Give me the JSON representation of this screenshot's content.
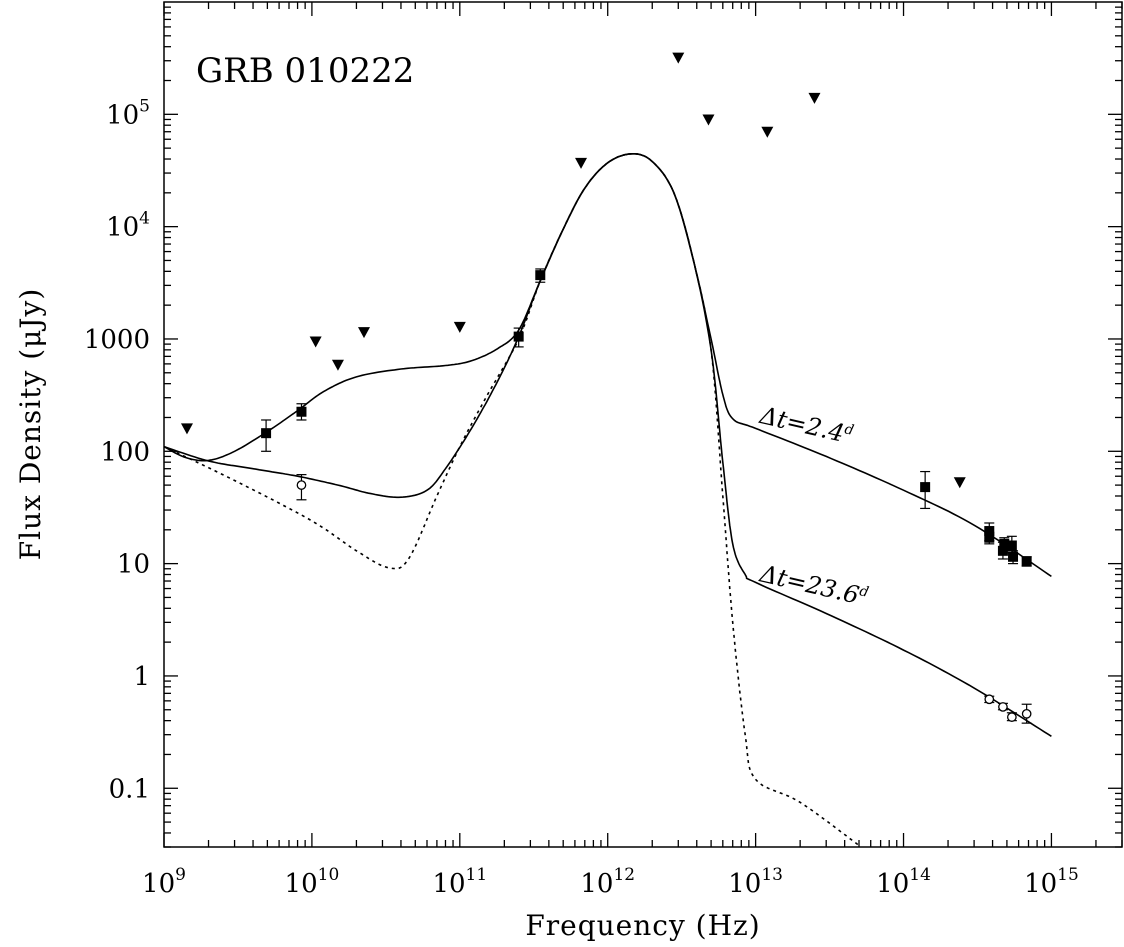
{
  "chart_data": {
    "type": "scatter",
    "title": "GRB 010222",
    "xlabel": "Frequency (Hz)",
    "ylabel": "Flux Density (μJy)",
    "xscale": "log",
    "yscale": "log",
    "xlim": [
      1000000000.0,
      3000000000000000.0
    ],
    "ylim": [
      0.03,
      1000000.0
    ],
    "grid": false,
    "x_ticks": [
      {
        "value": 1000000000.0,
        "base": "10",
        "exp": "9"
      },
      {
        "value": 10000000000.0,
        "base": "10",
        "exp": "10"
      },
      {
        "value": 100000000000.0,
        "base": "10",
        "exp": "11"
      },
      {
        "value": 1000000000000.0,
        "base": "10",
        "exp": "12"
      },
      {
        "value": 10000000000000.0,
        "base": "10",
        "exp": "13"
      },
      {
        "value": 100000000000000.0,
        "base": "10",
        "exp": "14"
      },
      {
        "value": 1000000000000000.0,
        "base": "10",
        "exp": "15"
      }
    ],
    "y_ticks": [
      {
        "value": 0.1,
        "label": "0.1"
      },
      {
        "value": 1,
        "label": "1"
      },
      {
        "value": 10,
        "label": "10"
      },
      {
        "value": 100,
        "label": "100"
      },
      {
        "value": 1000,
        "label": "1000"
      },
      {
        "value": 10000,
        "base": "10",
        "exp": "4"
      },
      {
        "value": 100000,
        "base": "10",
        "exp": "5"
      }
    ],
    "series": [
      {
        "marker": "filled-square",
        "points": [
          {
            "x": 4900000000.0,
            "y": 145,
            "yerr": [
              100,
              190
            ]
          },
          {
            "x": 8500000000.0,
            "y": 225,
            "yerr": [
              190,
              265
            ]
          },
          {
            "x": 250000000000.0,
            "y": 1050,
            "yerr": [
              850,
              1250
            ]
          },
          {
            "x": 350000000000.0,
            "y": 3700,
            "yerr": [
              3200,
              4200
            ]
          },
          {
            "x": 140000000000000.0,
            "y": 48,
            "yerr": [
              31,
              66
            ]
          },
          {
            "x": 380000000000000.0,
            "y": 19.5,
            "yerr": [
              16,
              23
            ]
          },
          {
            "x": 380000000000000.0,
            "y": 17,
            "yerr": [
              15,
              19
            ]
          },
          {
            "x": 470000000000000.0,
            "y": 13,
            "yerr": [
              11,
              15.5
            ]
          },
          {
            "x": 480000000000000.0,
            "y": 15,
            "yerr": [
              13,
              17
            ]
          },
          {
            "x": 540000000000000.0,
            "y": 14.5,
            "yerr": [
              12.5,
              17.5
            ]
          },
          {
            "x": 550000000000000.0,
            "y": 11.5,
            "yerr": [
              10,
              13
            ]
          },
          {
            "x": 680000000000000.0,
            "y": 10.5,
            "yerr": [
              9.5,
              11.5
            ]
          }
        ]
      },
      {
        "marker": "open-circle",
        "points": [
          {
            "x": 8500000000.0,
            "y": 50,
            "yerr": [
              37,
              62
            ]
          },
          {
            "x": 380000000000000.0,
            "y": 0.62,
            "yerr": [
              0.58,
              0.66
            ]
          },
          {
            "x": 470000000000000.0,
            "y": 0.53,
            "yerr": [
              0.5,
              0.57
            ]
          },
          {
            "x": 540000000000000.0,
            "y": 0.43,
            "yerr": [
              0.4,
              0.47
            ]
          },
          {
            "x": 680000000000000.0,
            "y": 0.46,
            "yerr": [
              0.38,
              0.56
            ]
          }
        ]
      },
      {
        "marker": "upper-limit-triangle",
        "points": [
          {
            "x": 1430000000.0,
            "y": 160
          },
          {
            "x": 10600000000.0,
            "y": 950
          },
          {
            "x": 15000000000.0,
            "y": 590
          },
          {
            "x": 22500000000.0,
            "y": 1150
          },
          {
            "x": 100000000000.0,
            "y": 1280
          },
          {
            "x": 660000000000.0,
            "y": 37000
          },
          {
            "x": 3000000000000.0,
            "y": 320000
          },
          {
            "x": 4800000000000.0,
            "y": 90000
          },
          {
            "x": 12000000000000.0,
            "y": 70000
          },
          {
            "x": 25000000000000.0,
            "y": 140000
          },
          {
            "x": 240000000000000.0,
            "y": 53
          }
        ]
      },
      {
        "style": "solid",
        "label": {
          "prefix": "Δt=2.4",
          "sup": "d"
        },
        "label_at": {
          "x": 10500000000000.0,
          "y": 180
        },
        "points": [
          {
            "x": 1000000000.0,
            "y": 110
          },
          {
            "x": 1400000000.0,
            "y": 88
          },
          {
            "x": 2000000000.0,
            "y": 83
          },
          {
            "x": 3000000000.0,
            "y": 100
          },
          {
            "x": 5000000000.0,
            "y": 150
          },
          {
            "x": 8000000000.0,
            "y": 230
          },
          {
            "x": 12000000000.0,
            "y": 340
          },
          {
            "x": 20000000000.0,
            "y": 460
          },
          {
            "x": 40000000000.0,
            "y": 540
          },
          {
            "x": 80000000000.0,
            "y": 580
          },
          {
            "x": 120000000000.0,
            "y": 640
          },
          {
            "x": 180000000000.0,
            "y": 820
          },
          {
            "x": 250000000000.0,
            "y": 1200
          },
          {
            "x": 350000000000.0,
            "y": 3300
          },
          {
            "x": 500000000000.0,
            "y": 9500
          },
          {
            "x": 700000000000.0,
            "y": 22000
          },
          {
            "x": 1000000000000.0,
            "y": 37000
          },
          {
            "x": 1450000000000.0,
            "y": 44500
          },
          {
            "x": 2000000000000.0,
            "y": 38000
          },
          {
            "x": 2800000000000.0,
            "y": 20000
          },
          {
            "x": 3800000000000.0,
            "y": 5000
          },
          {
            "x": 5000000000000.0,
            "y": 1000
          },
          {
            "x": 6000000000000.0,
            "y": 320
          },
          {
            "x": 7000000000000.0,
            "y": 195
          },
          {
            "x": 10000000000000.0,
            "y": 160
          },
          {
            "x": 30000000000000.0,
            "y": 90
          },
          {
            "x": 100000000000000.0,
            "y": 45
          },
          {
            "x": 300000000000000.0,
            "y": 22
          },
          {
            "x": 1000000000000000.0,
            "y": 7.7
          }
        ]
      },
      {
        "style": "solid",
        "label": {
          "prefix": "Δt=23.6",
          "sup": "d"
        },
        "label_at": {
          "x": 10500000000000.0,
          "y": 7
        },
        "points": [
          {
            "x": 1000000000.0,
            "y": 110
          },
          {
            "x": 2000000000.0,
            "y": 82
          },
          {
            "x": 4000000000.0,
            "y": 70
          },
          {
            "x": 8000000000.0,
            "y": 60
          },
          {
            "x": 15000000000.0,
            "y": 50
          },
          {
            "x": 25000000000.0,
            "y": 42
          },
          {
            "x": 40000000000.0,
            "y": 39
          },
          {
            "x": 60000000000.0,
            "y": 45
          },
          {
            "x": 80000000000.0,
            "y": 70
          },
          {
            "x": 120000000000.0,
            "y": 160
          },
          {
            "x": 180000000000.0,
            "y": 420
          },
          {
            "x": 250000000000.0,
            "y": 1050
          },
          {
            "x": 350000000000.0,
            "y": 3300
          },
          {
            "x": 500000000000.0,
            "y": 9500
          },
          {
            "x": 700000000000.0,
            "y": 22000
          },
          {
            "x": 1000000000000.0,
            "y": 37000
          },
          {
            "x": 1450000000000.0,
            "y": 44500
          },
          {
            "x": 2000000000000.0,
            "y": 38000
          },
          {
            "x": 2800000000000.0,
            "y": 20000
          },
          {
            "x": 3800000000000.0,
            "y": 5000
          },
          {
            "x": 5000000000000.0,
            "y": 800
          },
          {
            "x": 6000000000000.0,
            "y": 80
          },
          {
            "x": 7000000000000.0,
            "y": 15
          },
          {
            "x": 8500000000000.0,
            "y": 8
          },
          {
            "x": 10000000000000.0,
            "y": 6.8
          },
          {
            "x": 30000000000000.0,
            "y": 3.6
          },
          {
            "x": 100000000000000.0,
            "y": 1.7
          },
          {
            "x": 300000000000000.0,
            "y": 0.78
          },
          {
            "x": 1000000000000000.0,
            "y": 0.29
          }
        ]
      },
      {
        "style": "dotted",
        "points": [
          {
            "x": 1000000000.0,
            "y": 110
          },
          {
            "x": 3000000000.0,
            "y": 55
          },
          {
            "x": 10000000000.0,
            "y": 24
          },
          {
            "x": 20000000000.0,
            "y": 13
          },
          {
            "x": 33000000000.0,
            "y": 9.2
          },
          {
            "x": 45000000000.0,
            "y": 11
          },
          {
            "x": 70000000000.0,
            "y": 40
          },
          {
            "x": 100000000000.0,
            "y": 110
          },
          {
            "x": 150000000000.0,
            "y": 300
          },
          {
            "x": 250000000000.0,
            "y": 1000
          },
          {
            "x": 350000000000.0,
            "y": 3300
          },
          {
            "x": 500000000000.0,
            "y": 9500
          },
          {
            "x": 700000000000.0,
            "y": 22000
          },
          {
            "x": 1000000000000.0,
            "y": 37000
          },
          {
            "x": 1450000000000.0,
            "y": 44500
          },
          {
            "x": 2000000000000.0,
            "y": 38000
          },
          {
            "x": 2800000000000.0,
            "y": 20000
          },
          {
            "x": 3800000000000.0,
            "y": 5000
          },
          {
            "x": 5000000000000.0,
            "y": 800
          },
          {
            "x": 6000000000000.0,
            "y": 40
          },
          {
            "x": 7000000000000.0,
            "y": 3
          },
          {
            "x": 8500000000000.0,
            "y": 0.3
          },
          {
            "x": 10000000000000.0,
            "y": 0.12
          },
          {
            "x": 20000000000000.0,
            "y": 0.075
          },
          {
            "x": 50000000000000.0,
            "y": 0.031
          }
        ]
      }
    ]
  }
}
